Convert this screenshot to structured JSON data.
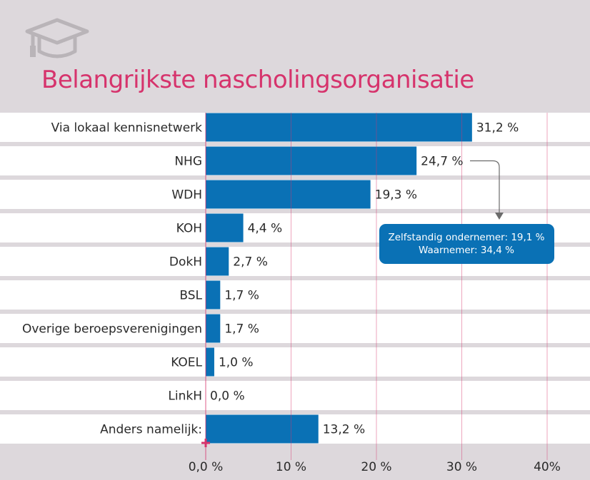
{
  "chart_data": {
    "type": "bar",
    "orientation": "horizontal",
    "title": "Belangrijkste nascholingsorganisatie",
    "categories": [
      "Via lokaal kennisnetwerk",
      "NHG",
      "WDH",
      "KOH",
      "DokH",
      "BSL",
      "Overige beroepsverenigingen",
      "KOEL",
      "LinkH",
      "Anders namelijk:"
    ],
    "values": [
      31.2,
      24.7,
      19.3,
      4.4,
      2.7,
      1.7,
      1.7,
      1.0,
      0.0,
      13.2
    ],
    "value_labels": [
      "31,2 %",
      "24,7 %",
      "19,3 %",
      "4,4 %",
      "2,7 %",
      "1,7 %",
      "1,7 %",
      "1,0 %",
      "0,0 %",
      "13,2 %"
    ],
    "xlim": [
      0,
      40
    ],
    "x_ticks": [
      0,
      10,
      20,
      30,
      40
    ],
    "x_tick_labels": [
      "0,0 %",
      "10 %",
      "20 %",
      "30 %",
      "40%"
    ],
    "bar_color": "#0a71b5",
    "title_color": "#d6336c",
    "callout": {
      "category": "NHG",
      "lines": [
        "Zelfstandig ondernemer: 19,1 %",
        "Waarnemer: 34,4 %"
      ]
    }
  },
  "icon": "graduation-cap-icon"
}
